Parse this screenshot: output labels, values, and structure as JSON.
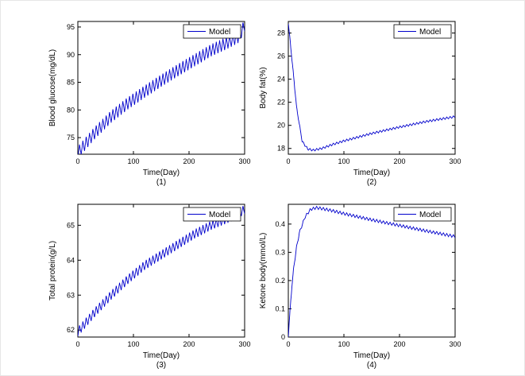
{
  "figure": {
    "background": "#ffffff",
    "line_color": "#0000cc",
    "axis_color": "#000000"
  },
  "chart_data": [
    {
      "type": "line",
      "ylabel": "Blood glucose(mg/dL)",
      "xlabel": "Time(Day)",
      "sublabel": "(1)",
      "xlim": [
        0,
        300
      ],
      "ylim": [
        72,
        96
      ],
      "xticks": [
        0,
        100,
        200,
        300
      ],
      "yticks": [
        75,
        80,
        85,
        90,
        95
      ],
      "grid": false,
      "legend": {
        "label": "Model",
        "position": "top-right"
      },
      "series": [
        {
          "name": "Model",
          "color": "#0000cc",
          "trend": [
            [
              0,
              72.3
            ],
            [
              30,
              75.8
            ],
            [
              60,
              78.8
            ],
            [
              90,
              81.2
            ],
            [
              120,
              83.3
            ],
            [
              150,
              85.3
            ],
            [
              180,
              87.2
            ],
            [
              210,
              89.0
            ],
            [
              240,
              90.8
            ],
            [
              270,
              92.2
            ],
            [
              290,
              93.3
            ],
            [
              300,
              95.3
            ]
          ],
          "osc_amplitude": 1.1,
          "osc_period": 6
        }
      ]
    },
    {
      "type": "line",
      "ylabel": "Body fat(%)",
      "xlabel": "Time(Day)",
      "sublabel": "(2)",
      "xlim": [
        0,
        300
      ],
      "ylim": [
        17.5,
        29
      ],
      "xticks": [
        0,
        100,
        200,
        300
      ],
      "yticks": [
        18,
        20,
        22,
        24,
        26,
        28
      ],
      "grid": false,
      "legend": {
        "label": "Model",
        "position": "top-right"
      },
      "series": [
        {
          "name": "Model",
          "color": "#0000cc",
          "trend": [
            [
              0,
              28.9
            ],
            [
              8,
              25.0
            ],
            [
              15,
              21.5
            ],
            [
              25,
              18.6
            ],
            [
              35,
              17.95
            ],
            [
              45,
              17.85
            ],
            [
              60,
              18.0
            ],
            [
              80,
              18.35
            ],
            [
              100,
              18.65
            ],
            [
              150,
              19.3
            ],
            [
              200,
              19.85
            ],
            [
              250,
              20.35
            ],
            [
              300,
              20.75
            ]
          ],
          "osc_amplitude": 0.09,
          "osc_period": 6
        }
      ]
    },
    {
      "type": "line",
      "ylabel": "Total protein(g/L)",
      "xlabel": "Time(Day)",
      "sublabel": "(3)",
      "xlim": [
        0,
        300
      ],
      "ylim": [
        61.8,
        65.6
      ],
      "xticks": [
        0,
        100,
        200,
        300
      ],
      "yticks": [
        62,
        63,
        64,
        65
      ],
      "grid": false,
      "legend": {
        "label": "Model",
        "position": "top-right"
      },
      "series": [
        {
          "name": "Model",
          "color": "#0000cc",
          "trend": [
            [
              0,
              61.95
            ],
            [
              30,
              62.5
            ],
            [
              60,
              63.0
            ],
            [
              90,
              63.45
            ],
            [
              120,
              63.85
            ],
            [
              150,
              64.15
            ],
            [
              180,
              64.45
            ],
            [
              210,
              64.75
            ],
            [
              240,
              65.0
            ],
            [
              270,
              65.2
            ],
            [
              290,
              65.35
            ],
            [
              300,
              65.45
            ]
          ],
          "osc_amplitude": 0.13,
          "osc_period": 6
        }
      ]
    },
    {
      "type": "line",
      "ylabel": "Ketone body(mmol/L)",
      "xlabel": "Time(Day)",
      "sublabel": "(4)",
      "xlim": [
        0,
        300
      ],
      "ylim": [
        0,
        0.47
      ],
      "xticks": [
        0,
        100,
        200,
        300
      ],
      "yticks": [
        0,
        0.1,
        0.2,
        0.3,
        0.4
      ],
      "grid": false,
      "legend": {
        "label": "Model",
        "position": "top-right"
      },
      "series": [
        {
          "name": "Model",
          "color": "#0000cc",
          "trend": [
            [
              0,
              0.005
            ],
            [
              3,
              0.09
            ],
            [
              6,
              0.17
            ],
            [
              10,
              0.25
            ],
            [
              15,
              0.32
            ],
            [
              20,
              0.37
            ],
            [
              30,
              0.425
            ],
            [
              40,
              0.452
            ],
            [
              50,
              0.458
            ],
            [
              60,
              0.455
            ],
            [
              80,
              0.447
            ],
            [
              100,
              0.437
            ],
            [
              150,
              0.415
            ],
            [
              200,
              0.395
            ],
            [
              250,
              0.375
            ],
            [
              300,
              0.356
            ]
          ],
          "osc_amplitude": 0.005,
          "osc_period": 6
        }
      ]
    }
  ]
}
